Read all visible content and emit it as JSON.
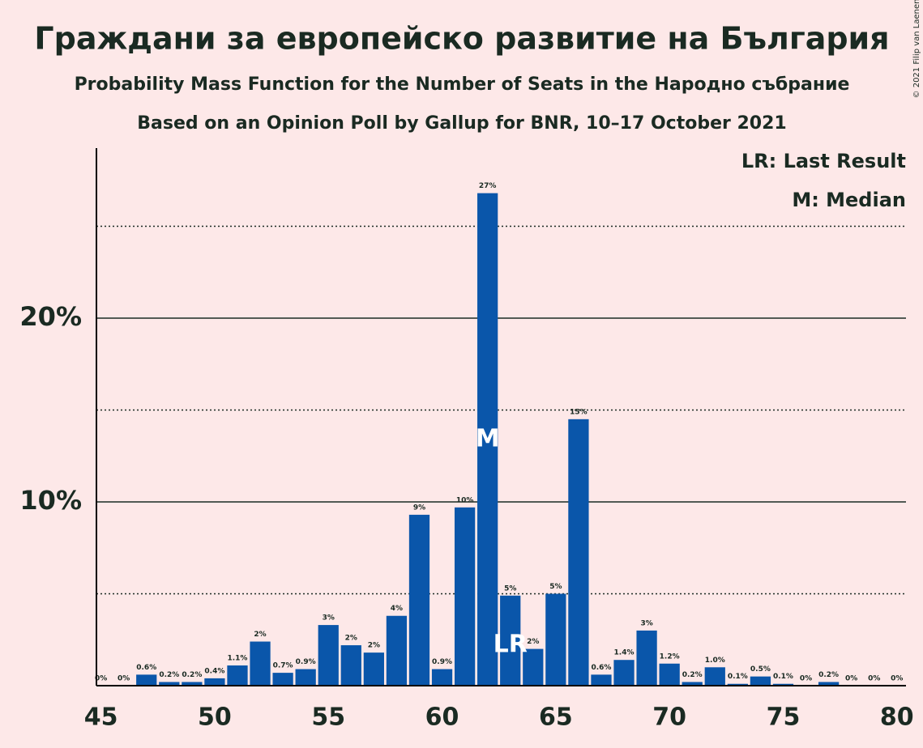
{
  "chart_data": {
    "type": "bar",
    "title": "Граждани за европейско развитие на България",
    "subtitle": "Probability Mass Function for the Number of Seats in the Народно събрание",
    "subtitle2": "Based on an Opinion Poll by Gallup for BNR, 10–17 October 2021",
    "copyright": "© 2021 Filip van Laenen",
    "legend": [
      "LR: Last Result",
      "M: Median"
    ],
    "x": [
      45,
      46,
      47,
      48,
      49,
      50,
      51,
      52,
      53,
      54,
      55,
      56,
      57,
      58,
      59,
      60,
      61,
      62,
      63,
      64,
      65,
      66,
      67,
      68,
      69,
      70,
      71,
      72,
      73,
      74,
      75,
      76,
      77,
      78,
      79,
      80
    ],
    "values": [
      0,
      0,
      0.6,
      0.2,
      0.2,
      0.4,
      1.1,
      2.4,
      0.7,
      0.9,
      3.3,
      2.2,
      1.8,
      3.8,
      9.3,
      0.9,
      9.7,
      26.8,
      4.9,
      2.0,
      5.0,
      14.5,
      0.6,
      1.4,
      3.0,
      1.2,
      0.2,
      1.0,
      0.1,
      0.5,
      0.1,
      0,
      0.2,
      0,
      0,
      0
    ],
    "value_labels": [
      "0%",
      "0%",
      "0.6%",
      "0.2%",
      "0.2%",
      "0.4%",
      "1.1%",
      "2%",
      "0.7%",
      "0.9%",
      "3%",
      "2%",
      "2%",
      "4%",
      "9%",
      "0.9%",
      "10%",
      "27%",
      "5%",
      "2%",
      "5%",
      "15%",
      "0.6%",
      "1.4%",
      "3%",
      "1.2%",
      "0.2%",
      "1.0%",
      "0.1%",
      "0.5%",
      "0.1%",
      "0%",
      "0.2%",
      "0%",
      "0%",
      "0%"
    ],
    "color": "#0a56aa",
    "annotations": [
      {
        "label": "M",
        "x": 62
      },
      {
        "label": "LR",
        "x": 63
      }
    ],
    "xlim": [
      44.8,
      80.4
    ],
    "xticks": [
      45,
      50,
      55,
      60,
      65,
      70,
      75,
      80
    ],
    "ylim": [
      0,
      29.25
    ],
    "yticks": [
      {
        "value": 10,
        "label": "10%"
      },
      {
        "value": 20,
        "label": "20%"
      }
    ],
    "minor_yticks": [
      5,
      15,
      25
    ]
  }
}
